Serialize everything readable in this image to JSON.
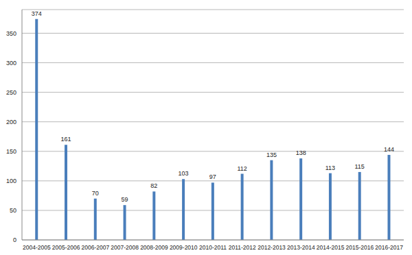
{
  "chart_data": {
    "type": "bar",
    "categories": [
      "2004-2005",
      "2005-2006",
      "2006-2007",
      "2007-2008",
      "2008-2009",
      "2009-2010",
      "2010-2011",
      "2011-2012",
      "2012-2013",
      "2013-2014",
      "2014-2015",
      "2015-2016",
      "2016-2017"
    ],
    "values": [
      374,
      161,
      70,
      59,
      82,
      103,
      97,
      112,
      135,
      138,
      113,
      115,
      144
    ],
    "color": "#4a7ebb",
    "ylim": [
      0,
      390
    ],
    "yticks": [
      0,
      50,
      100,
      150,
      200,
      250,
      300,
      350
    ],
    "grid": true,
    "data_labels": true
  }
}
